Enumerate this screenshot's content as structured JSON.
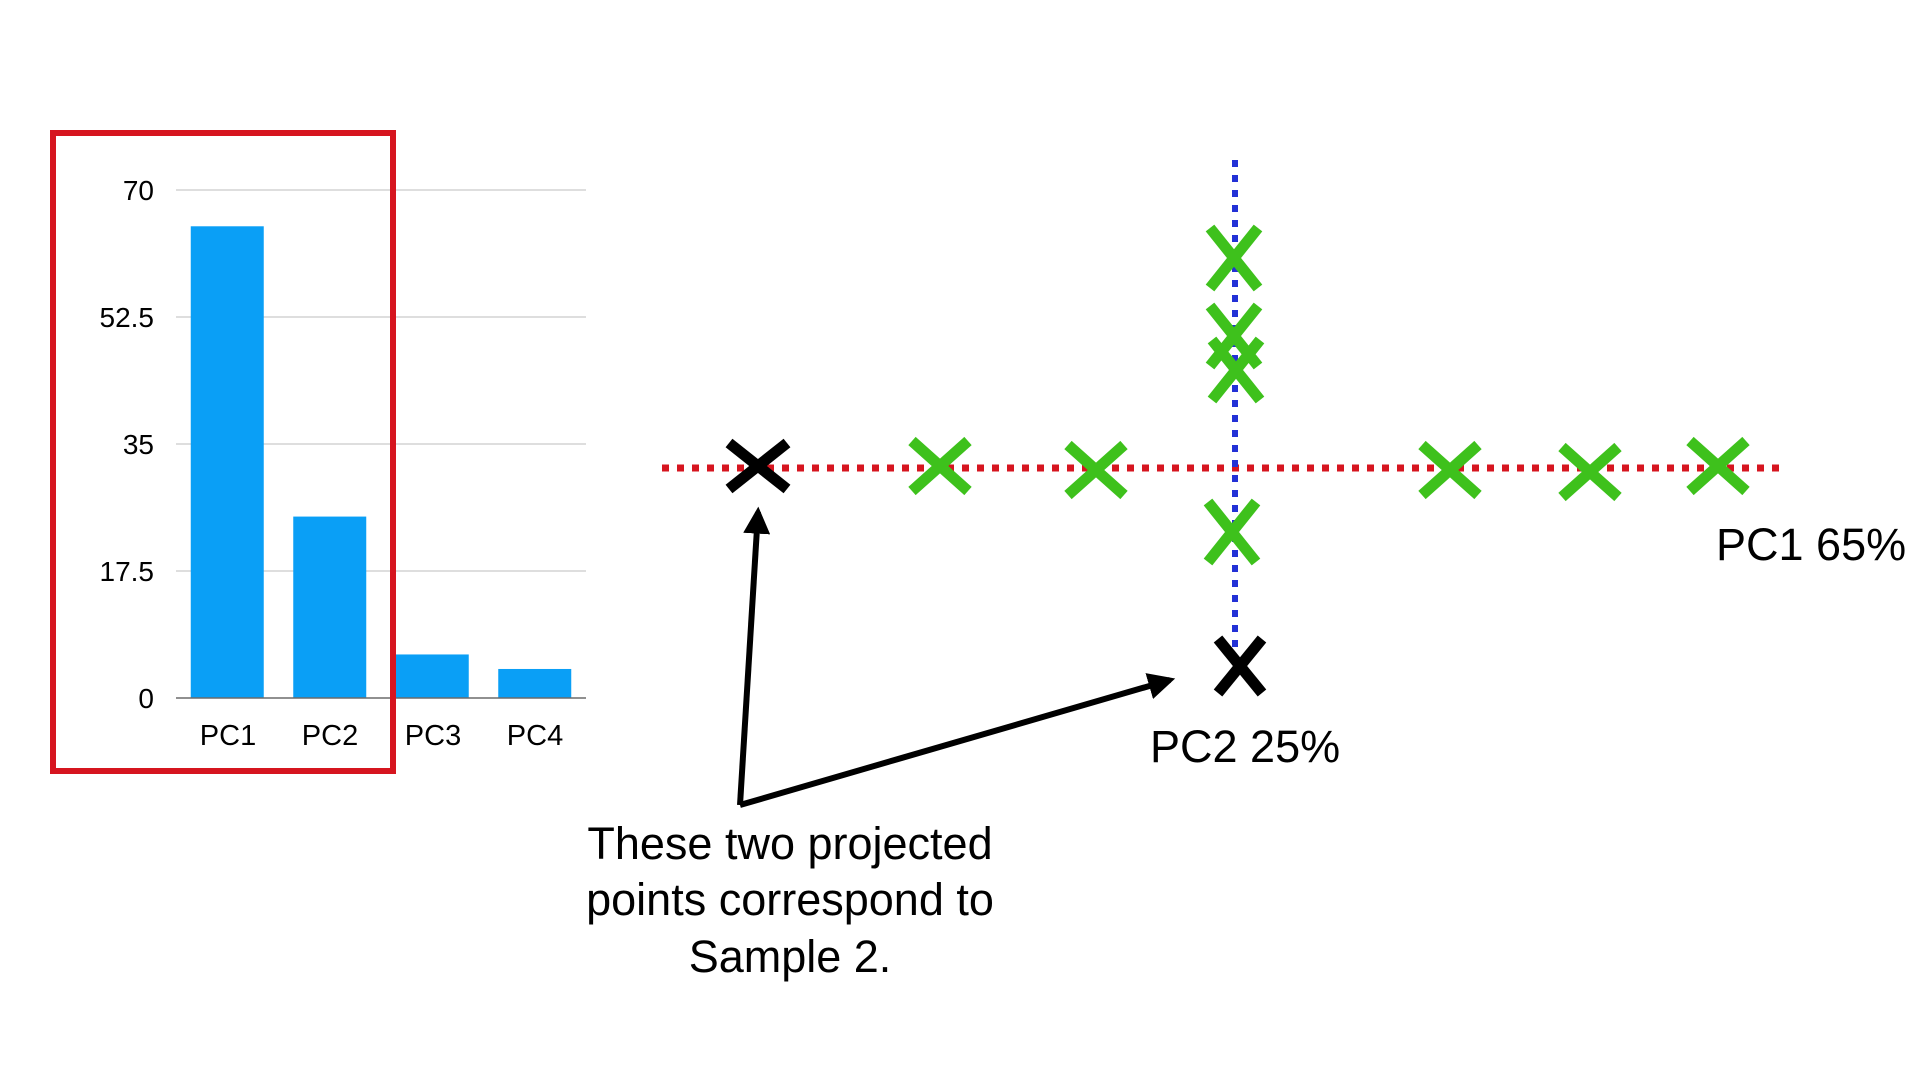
{
  "chart_data": {
    "type": "bar",
    "categories": [
      "PC1",
      "PC2",
      "PC3",
      "PC4"
    ],
    "values": [
      65,
      25,
      6,
      4
    ],
    "ylim": [
      0,
      70
    ],
    "yticks": [
      "0",
      "17.5",
      "35",
      "52.5",
      "70"
    ],
    "ytick_values": [
      0,
      17.5,
      35,
      52.5,
      70
    ],
    "grid": true,
    "bar_color": "#0a9ff6",
    "highlight": {
      "categories": [
        "PC1",
        "PC2"
      ],
      "color": "#d6151f"
    }
  },
  "projection": {
    "pc1_label": "PC1 65%",
    "pc2_label": "PC2 25%",
    "pc1_line_color": "#d6151f",
    "pc2_line_color": "#2231d6",
    "point_color": "#3ec11c",
    "projected_point_color": "#000000"
  },
  "annotation": {
    "lines": [
      "These two projected",
      "points correspond to",
      "Sample 2."
    ]
  }
}
